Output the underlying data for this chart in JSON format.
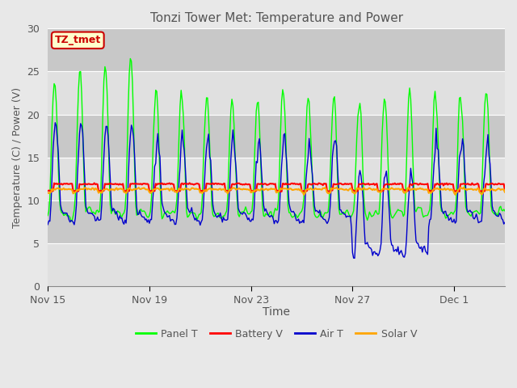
{
  "title": "Tonzi Tower Met: Temperature and Power",
  "xlabel": "Time",
  "ylabel": "Temperature (C) / Power (V)",
  "ylim": [
    0,
    30
  ],
  "yticks": [
    0,
    5,
    10,
    15,
    20,
    25,
    30
  ],
  "x_tick_labels": [
    "Nov 15",
    "Nov 19",
    "Nov 23",
    "Nov 27",
    "Dec 1"
  ],
  "x_tick_positions": [
    0,
    96,
    192,
    288,
    384
  ],
  "total_points": 480,
  "panel_t_color": "#00ff00",
  "battery_v_color": "#ff0000",
  "air_t_color": "#0000cc",
  "solar_v_color": "#ffa500",
  "fig_bg_color": "#e8e8e8",
  "plot_bg_light": "#e0e0e0",
  "plot_bg_dark": "#c8c8c8",
  "annotation_text": "TZ_tmet",
  "annotation_bg": "#ffffcc",
  "annotation_border": "#cc0000",
  "legend_labels": [
    "Panel T",
    "Battery V",
    "Air T",
    "Solar V"
  ],
  "grid_color": "#ffffff",
  "title_color": "#555555",
  "label_color": "#555555",
  "spine_color": "#888888"
}
